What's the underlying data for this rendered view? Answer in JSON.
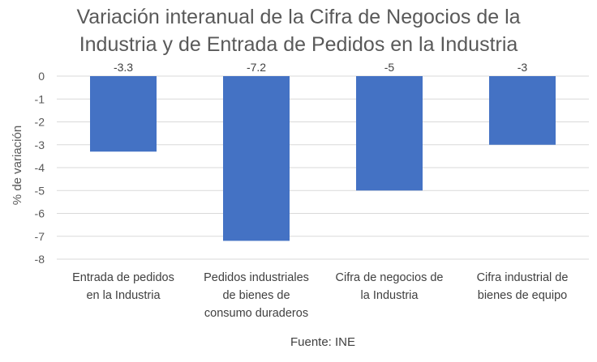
{
  "chart_data": {
    "type": "bar",
    "title_lines": [
      "Variación interanual de la Cifra de Negocios de la",
      "Industria y de Entrada de Pedidos en la Industria"
    ],
    "categories": [
      [
        "Entrada de pedidos",
        "en la Industria"
      ],
      [
        "Pedidos industriales",
        "de bienes de",
        "consumo duraderos"
      ],
      [
        "Cifra de negocios de",
        "la Industria"
      ],
      [
        "Cifra industrial de",
        "bienes de equipo"
      ]
    ],
    "values": [
      -3.3,
      -7.2,
      -5,
      -3
    ],
    "data_labels": [
      "-3.3",
      "-7.2",
      "-5",
      "-3"
    ],
    "ylabel": "% de variación",
    "ylim": [
      -8,
      0
    ],
    "yticks": [
      0,
      -1,
      -2,
      -3,
      -4,
      -5,
      -6,
      -7,
      -8
    ],
    "xlabel": "",
    "grid": true,
    "legend": "none",
    "source": "Fuente: INE",
    "bar_color": "#4472C4"
  }
}
